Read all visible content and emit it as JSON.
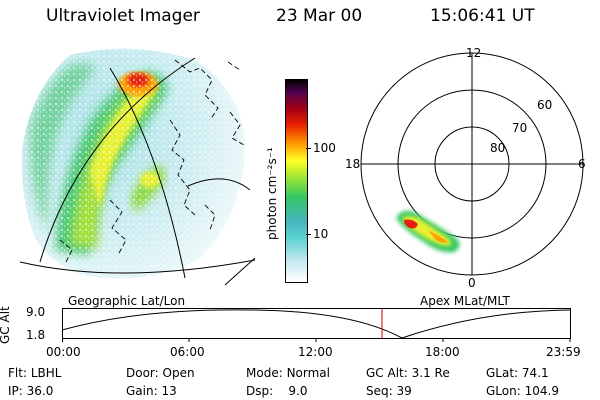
{
  "header": {
    "instrument": "Ultraviolet Imager",
    "date": "23 Mar 00",
    "time": "15:06:41 UT"
  },
  "colorbar": {
    "unit_label": "photon cm⁻²s⁻¹",
    "tick_labels": [
      "100",
      "10"
    ],
    "scale": "log",
    "colors": [
      "#ffffff",
      "#c8e8f0",
      "#5ad2d2",
      "#46b4be",
      "#32c864",
      "#a0e632",
      "#ffff28",
      "#ffa000",
      "#e61e00",
      "#a00014",
      "#500050",
      "#000000"
    ]
  },
  "polar_plot": {
    "mlt_labels": {
      "top": "12",
      "left": "18",
      "right": "6",
      "bottom": "0"
    },
    "lat_labels": [
      "60",
      "70",
      "80"
    ]
  },
  "timeline": {
    "left_label": "Geographic Lat/Lon",
    "right_label": "Apex MLat/MLT",
    "ylabel": "GC Alt",
    "yticks": [
      "9.0",
      "1.8"
    ],
    "xticks": [
      "00:00",
      "06:00",
      "12:00",
      "18:00",
      "23:59"
    ],
    "current_time_marker": "15:06",
    "marker_color": "#c80000"
  },
  "footer": {
    "row1": [
      {
        "label": "Flt:",
        "value": "LBHL"
      },
      {
        "label": "Door:",
        "value": "Open"
      },
      {
        "label": "Mode:",
        "value": "Normal"
      },
      {
        "label": "GC Alt:",
        "value": "3.1 Re"
      },
      {
        "label": "GLat:",
        "value": "74.1"
      }
    ],
    "row2": [
      {
        "label": "IP:",
        "value": "36.0"
      },
      {
        "label": "Gain:",
        "value": "13"
      },
      {
        "label": "Dsp:",
        "value": "9.0"
      },
      {
        "label": "Seq:",
        "value": "39"
      },
      {
        "label": "GLon:",
        "value": "104.9"
      }
    ]
  }
}
